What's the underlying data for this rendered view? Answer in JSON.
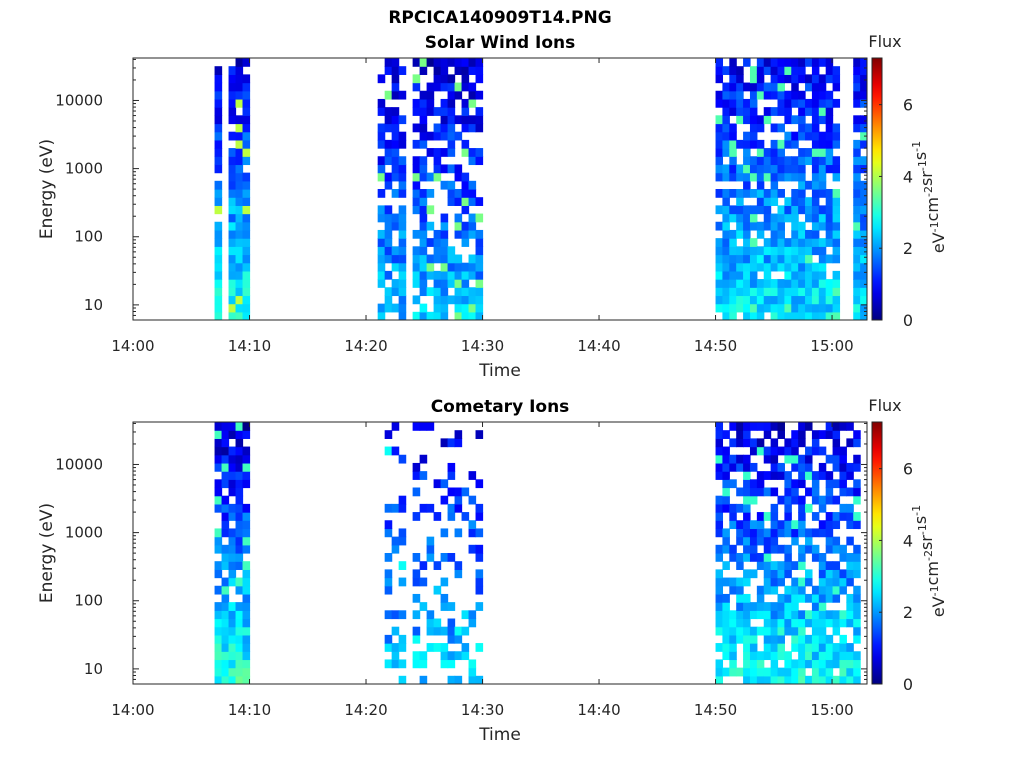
{
  "figure_title": "RPCICA140909T14.PNG",
  "chart_data": [
    {
      "type": "heatmap",
      "title": "Solar Wind Ions",
      "xlabel": "Time",
      "ylabel": "Energy (eV)",
      "x_ticks": [
        "14:00",
        "14:10",
        "14:20",
        "14:30",
        "14:40",
        "14:50",
        "15:00"
      ],
      "xlim": [
        "14:00",
        "15:03"
      ],
      "y_scale": "log",
      "y_ticks": [
        10,
        100,
        1000,
        10000
      ],
      "y_tick_labels": [
        "10",
        "100",
        "1000",
        "10000"
      ],
      "ylim": [
        6,
        42000
      ],
      "colorbar": {
        "label": "Flux",
        "unit": "eV⁻¹cm⁻²sr⁻¹s⁻¹",
        "unit_parts": [
          "eV",
          "-1",
          "cm",
          "-2",
          "sr",
          "-1",
          "s",
          "-1"
        ],
        "ticks": [
          0,
          2,
          4,
          6
        ],
        "range": [
          0,
          7.3
        ],
        "colormap": "jet"
      },
      "x_start_time": "14:00",
      "x_end_time": "15:03",
      "blocks": [
        {
          "start": "14:07",
          "end": "14:10",
          "seed": 11,
          "bottom_level": 2.9,
          "top_level": 0.7,
          "fill": 0.97,
          "hi": 4.1
        },
        {
          "start": "14:21",
          "end": "14:30",
          "seed": 23,
          "bottom_level": 2.3,
          "top_level": 0.6,
          "fill": 0.68,
          "hi": 3.6
        },
        {
          "start": "14:50",
          "end": "15:03",
          "seed": 37,
          "bottom_level": 2.6,
          "top_level": 0.9,
          "fill": 0.82,
          "hi": 3.3
        }
      ]
    },
    {
      "type": "heatmap",
      "title": "Cometary Ions",
      "xlabel": "Time",
      "ylabel": "Energy (eV)",
      "x_ticks": [
        "14:00",
        "14:10",
        "14:20",
        "14:30",
        "14:40",
        "14:50",
        "15:00"
      ],
      "xlim": [
        "14:00",
        "15:03"
      ],
      "y_scale": "log",
      "y_ticks": [
        10,
        100,
        1000,
        10000
      ],
      "y_tick_labels": [
        "10",
        "100",
        "1000",
        "10000"
      ],
      "ylim": [
        6,
        42000
      ],
      "colorbar": {
        "label": "Flux",
        "unit": "eV⁻¹cm⁻²sr⁻¹s⁻¹",
        "unit_parts": [
          "eV",
          "-1",
          "cm",
          "-2",
          "sr",
          "-1",
          "s",
          "-1"
        ],
        "ticks": [
          0,
          2,
          4,
          6
        ],
        "range": [
          0,
          7.3
        ],
        "colormap": "jet"
      },
      "x_start_time": "14:00",
      "x_end_time": "15:03",
      "blocks": [
        {
          "start": "14:07",
          "end": "14:10",
          "seed": 53,
          "bottom_level": 3.0,
          "top_level": 0.5,
          "fill": 0.9,
          "hi": 3.2
        },
        {
          "start": "14:21",
          "end": "14:30",
          "seed": 67,
          "bottom_level": 2.4,
          "top_level": 0.8,
          "fill": 0.34,
          "hi": 2.8
        },
        {
          "start": "14:50",
          "end": "15:03",
          "seed": 71,
          "bottom_level": 2.8,
          "top_level": 0.7,
          "fill": 0.7,
          "hi": 3.1
        }
      ]
    }
  ]
}
